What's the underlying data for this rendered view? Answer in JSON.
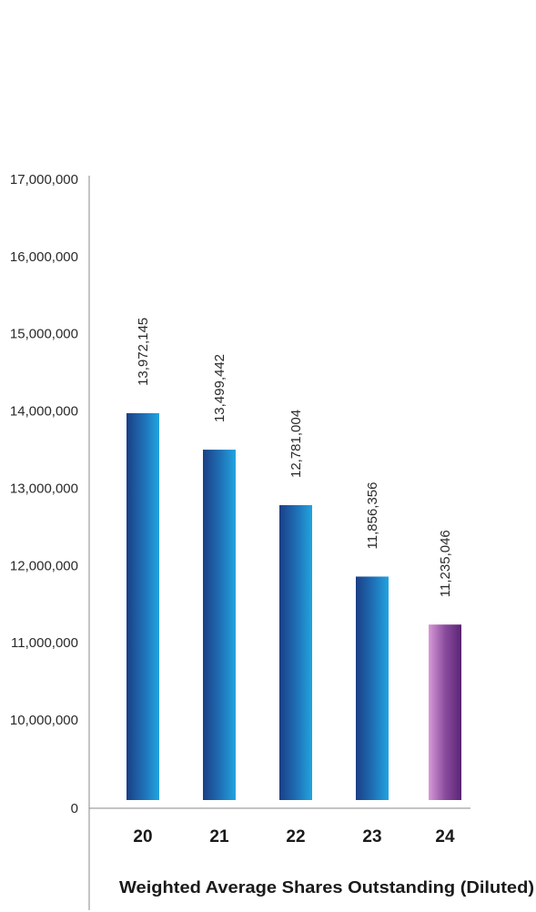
{
  "chart_data": {
    "type": "bar",
    "title": "Weighted Average Shares Outstanding (Diluted)",
    "categories": [
      "20",
      "21",
      "22",
      "23",
      "24"
    ],
    "values": [
      13972145,
      13499442,
      12781004,
      11856356,
      11235046
    ],
    "value_labels": [
      "13,972,145",
      "13,499,442",
      "12,781,004",
      "11,856,356",
      "11,235,046"
    ],
    "y_ticks": [
      0,
      10000000,
      11000000,
      12000000,
      13000000,
      14000000,
      15000000,
      16000000,
      17000000
    ],
    "y_tick_labels": [
      "0",
      "10,000,000",
      "11,000,000",
      "12,000,000",
      "13,000,000",
      "14,000,000",
      "15,000,000",
      "16,000,000",
      "17,000,000"
    ],
    "axis_break": true,
    "ylim": [
      9000000,
      17000000
    ],
    "grid": false,
    "colors": {
      "default_bar_dark": "#1b3f86",
      "default_bar_light": "#22a4e0",
      "highlight_bar_dark": "#5a2474",
      "highlight_bar_light": "#d79ad6",
      "axis": "#8a8a8a"
    },
    "highlight_index": 4
  }
}
